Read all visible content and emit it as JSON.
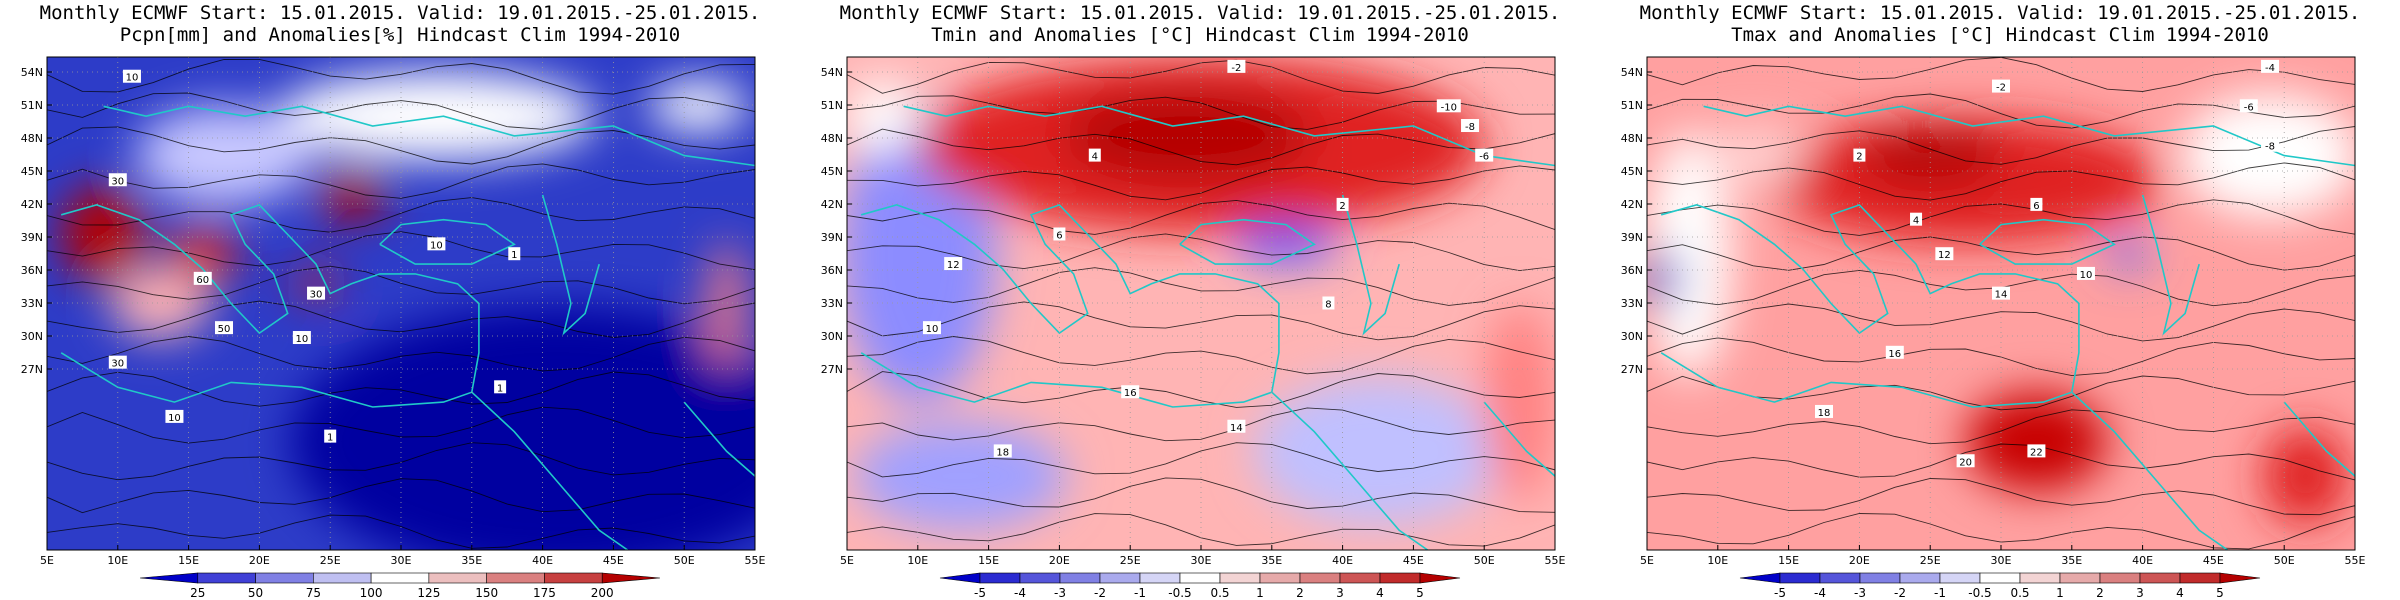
{
  "panels": [
    {
      "title_line1": "Monthly ECMWF Start: 15.01.2015. Valid: 19.01.2015.-25.01.2015.",
      "title_line2": "Pcpn[mm] and Anomalies[%] Hindcast Clim 1994-2010",
      "colorbar_labels": [
        "25",
        "50",
        "75",
        "100",
        "125",
        "150",
        "175",
        "200"
      ],
      "contour_labels": [
        "10",
        "30",
        "50",
        "60",
        "1",
        "10",
        "30",
        "10",
        "1",
        "1",
        "10",
        "30"
      ],
      "colors": {
        "low": "#0000c8",
        "mid": "#ffffff",
        "high": "#b40000"
      }
    },
    {
      "title_line1": "Monthly ECMWF Start: 15.01.2015. Valid: 19.01.2015.-25.01.2015.",
      "title_line2": "Tmin and Anomalies [°C] Hindcast Clim 1994-2010",
      "colorbar_labels": [
        "-5",
        "-4",
        "-3",
        "-2",
        "-1",
        "-0.5",
        "0.5",
        "1",
        "2",
        "3",
        "4",
        "5"
      ],
      "contour_labels": [
        "-2",
        "-10",
        "-8",
        "-6",
        "2",
        "6",
        "12",
        "10",
        "16",
        "14",
        "8",
        "4",
        "18"
      ],
      "colors": {
        "low": "#0000c8",
        "mid": "#ffffff",
        "high": "#b40000"
      }
    },
    {
      "title_line1": "Monthly ECMWF Start: 15.01.2015. Valid: 19.01.2015.-25.01.2015.",
      "title_line2": "Tmax and Anomalies [°C] Hindcast Clim 1994-2010",
      "colorbar_labels": [
        "-5",
        "-4",
        "-3",
        "-2",
        "-1",
        "-0.5",
        "0.5",
        "1",
        "2",
        "3",
        "4",
        "5"
      ],
      "contour_labels": [
        "-4",
        "-2",
        "-6",
        "-8",
        "2",
        "4",
        "6",
        "10",
        "12",
        "14",
        "16",
        "18",
        "20",
        "22"
      ],
      "colors": {
        "low": "#0000c8",
        "mid": "#ffffff",
        "high": "#b40000"
      }
    }
  ],
  "lat_ticks": [
    "54N",
    "51N",
    "48N",
    "45N",
    "42N",
    "39N",
    "36N",
    "33N",
    "30N",
    "27N"
  ],
  "lon_ticks": [
    "5E",
    "10E",
    "15E",
    "20E",
    "25E",
    "30E",
    "35E",
    "40E",
    "45E",
    "50E",
    "55E"
  ],
  "map_colors": {
    "coast": "#20c8c8",
    "grid": "#999999",
    "contour": "#000000"
  }
}
